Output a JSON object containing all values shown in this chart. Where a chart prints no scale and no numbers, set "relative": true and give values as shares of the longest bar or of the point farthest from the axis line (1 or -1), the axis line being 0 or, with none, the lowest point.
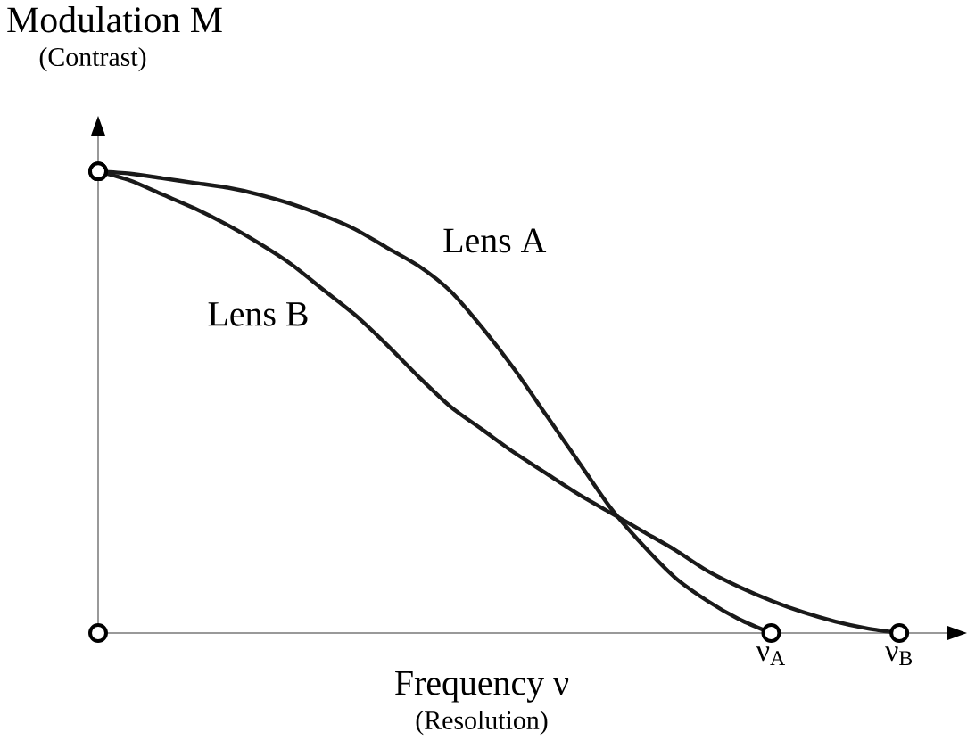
{
  "chart_data": {
    "type": "line",
    "relative": true,
    "ylabel": "Modulation  M",
    "xlabel": "Frequency ν",
    "annotations": [
      "(Contrast)",
      "(Resolution)"
    ],
    "categories": [
      null,
      null,
      null,
      null,
      null,
      null,
      null,
      null,
      null,
      null,
      null,
      null,
      null,
      null,
      null,
      null,
      null,
      null,
      null,
      null,
      null,
      "ν$_{A}$",
      null,
      null,
      null,
      "ν$_{B}$"
    ],
    "grid": false,
    "series": [
      {
        "name": "Lens A",
        "color": "#1a1a1a",
        "values": [
          1,
          0.995,
          0.985,
          0.975,
          0.965,
          0.95,
          0.93,
          0.905,
          0.875,
          0.835,
          0.795,
          0.74,
          0.66,
          0.57,
          0.47,
          0.37,
          0.27,
          0.19,
          0.12,
          0.07,
          0.03,
          0,
          null,
          null,
          null,
          null
        ]
      },
      {
        "name": "Lens B",
        "color": "#1a1a1a",
        "values": [
          1,
          0.98,
          0.95,
          0.92,
          0.885,
          0.845,
          0.8,
          0.745,
          0.69,
          0.625,
          0.555,
          0.49,
          0.44,
          0.39,
          0.345,
          0.3,
          0.26,
          0.22,
          0.18,
          0.135,
          0.1,
          0.07,
          0.045,
          0.025,
          0.01,
          0
        ]
      }
    ]
  }
}
